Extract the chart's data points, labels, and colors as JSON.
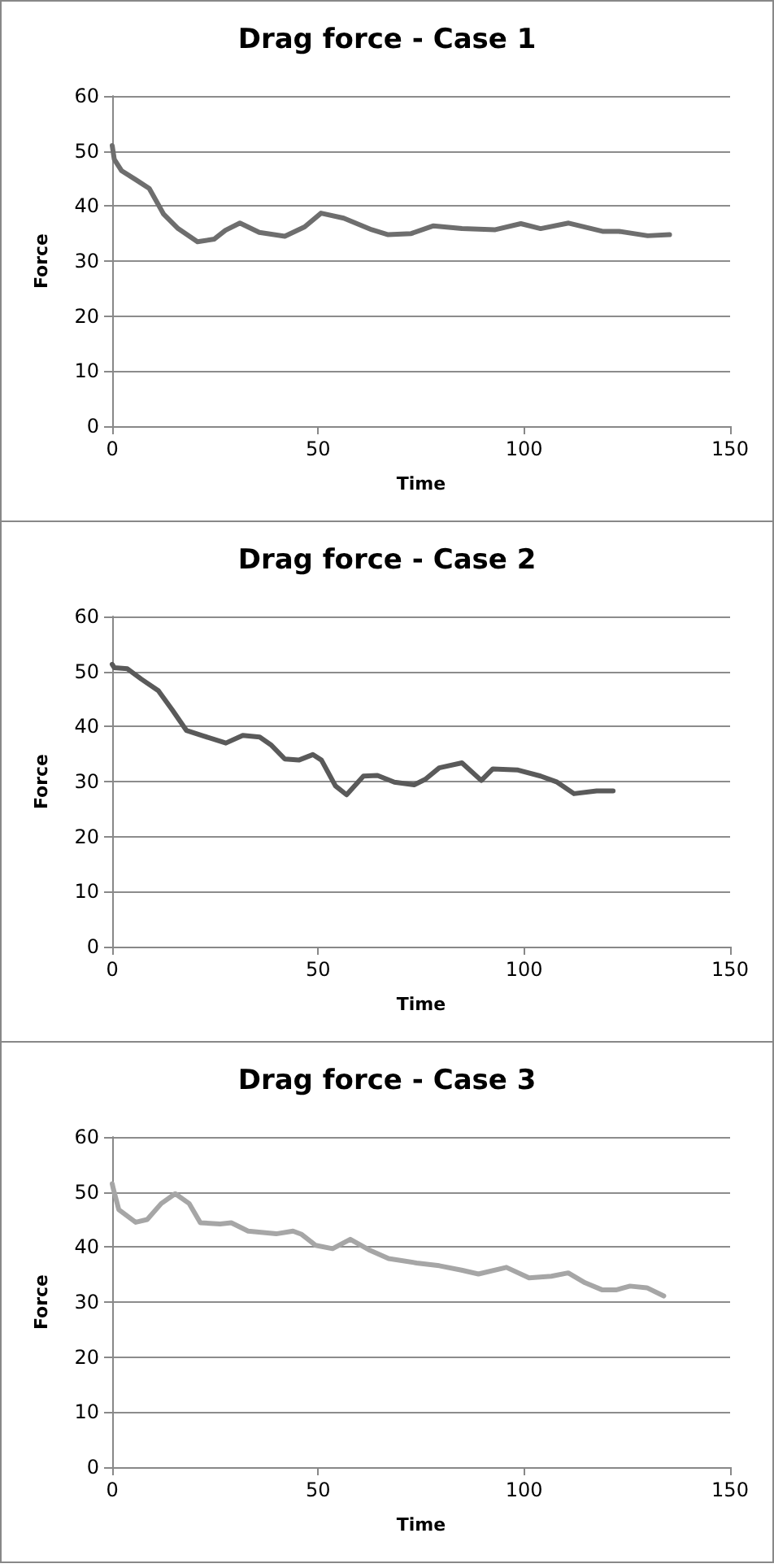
{
  "chart_data": [
    {
      "type": "line",
      "title": "Drag force - Case 1",
      "xlabel": "Time",
      "ylabel": "Force",
      "xlim": [
        0,
        150
      ],
      "xticks": [
        0,
        50,
        100,
        150
      ],
      "ylim": [
        0,
        60
      ],
      "yticks": [
        0,
        10,
        20,
        30,
        40,
        50,
        60
      ],
      "grid": "y",
      "marker": "none",
      "color": "#6e6e6e",
      "x": [
        0,
        0.5,
        2.3,
        5.7,
        9,
        12.5,
        16,
        20.7,
        24.8,
        27.5,
        31,
        35.7,
        41.9,
        46.7,
        50.7,
        56.2,
        63,
        67,
        72.6,
        78,
        84.9,
        93,
        99.2,
        104,
        110.8,
        119,
        123,
        130,
        135.3
      ],
      "values": [
        51,
        48.5,
        46.4,
        44.8,
        43.2,
        38.5,
        35.9,
        33.5,
        34,
        35.6,
        36.9,
        35.2,
        34.5,
        36.2,
        38.7,
        37.8,
        35.7,
        34.8,
        35,
        36.4,
        35.9,
        35.7,
        36.8,
        35.9,
        36.9,
        35.4,
        35.4,
        34.6,
        34.8
      ]
    },
    {
      "type": "line",
      "title": "Drag force - Case 2",
      "xlabel": "Time",
      "ylabel": "Force",
      "xlim": [
        0,
        150
      ],
      "xticks": [
        0,
        50,
        100,
        150
      ],
      "ylim": [
        0,
        60
      ],
      "yticks": [
        0,
        10,
        20,
        30,
        40,
        50,
        60
      ],
      "grid": "y",
      "marker": "none",
      "color": "#5a5a5a",
      "x": [
        0,
        0.5,
        3.7,
        7.1,
        11.2,
        14.6,
        18,
        22.1,
        27.6,
        31.7,
        35.8,
        38.5,
        41.9,
        45.3,
        48.7,
        50.8,
        54.2,
        56.9,
        61,
        64.4,
        68.5,
        73.3,
        76,
        79.4,
        84.9,
        89.6,
        92.4,
        98.5,
        104,
        108,
        112.1,
        117.6,
        121.6
      ],
      "values": [
        51.3,
        50.7,
        50.5,
        48.6,
        46.5,
        43,
        39.3,
        38.3,
        37,
        38.4,
        38.1,
        36.7,
        34.1,
        33.9,
        34.9,
        33.9,
        29.2,
        27.6,
        31,
        31.1,
        29.9,
        29.4,
        30.4,
        32.5,
        33.4,
        30.2,
        32.3,
        32.1,
        31,
        29.9,
        27.8,
        28.3,
        28.3
      ]
    },
    {
      "type": "line",
      "title": "Drag force - Case 3",
      "xlabel": "Time",
      "ylabel": "Force",
      "xlim": [
        0,
        150
      ],
      "xticks": [
        0,
        50,
        100,
        150
      ],
      "ylim": [
        0,
        60
      ],
      "yticks": [
        0,
        10,
        20,
        30,
        40,
        50,
        60
      ],
      "grid": "y",
      "marker": "none",
      "color": "#a6a6a6",
      "x": [
        0,
        0.3,
        1.6,
        5.7,
        8.5,
        11.9,
        15.3,
        18.7,
        21.4,
        26.2,
        28.9,
        33,
        39.8,
        43.9,
        46,
        49.4,
        53.5,
        57.8,
        62.3,
        67.1,
        73.9,
        79.4,
        84.8,
        88.9,
        95.7,
        101.2,
        106.6,
        110.7,
        114.8,
        119,
        122.3,
        125.7,
        129.8,
        133.9
      ],
      "values": [
        51.5,
        50.5,
        46.8,
        44.5,
        45,
        47.9,
        49.7,
        47.9,
        44.4,
        44.2,
        44.4,
        42.9,
        42.4,
        42.9,
        42.3,
        40.3,
        39.7,
        41.4,
        39.5,
        37.9,
        37.1,
        36.6,
        35.8,
        35.1,
        36.3,
        34.4,
        34.7,
        35.3,
        33.5,
        32.2,
        32.2,
        32.9,
        32.6,
        31.1
      ]
    }
  ]
}
